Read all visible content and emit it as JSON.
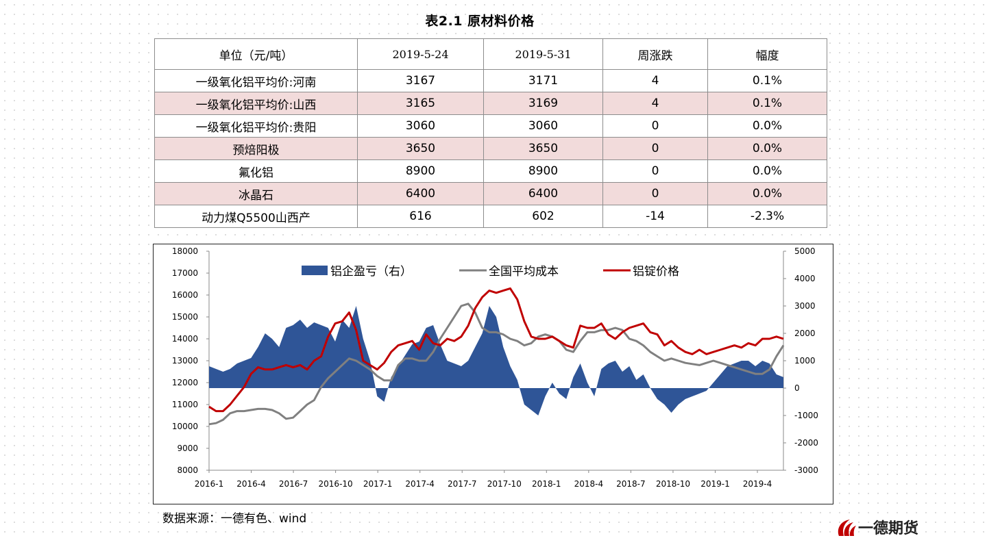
{
  "table": {
    "title": "表2.1 原材料价格",
    "headers": [
      "单位（元/吨）",
      "2019-5-24",
      "2019-5-31",
      "周涨跌",
      "幅度"
    ],
    "rows": [
      [
        "一级氧化铝平均价:河南",
        "3167",
        "3171",
        "4",
        "0.1%"
      ],
      [
        "一级氧化铝平均价:山西",
        "3165",
        "3169",
        "4",
        "0.1%"
      ],
      [
        "一级氧化铝平均价:贵阳",
        "3060",
        "3060",
        "0",
        "0.0%"
      ],
      [
        "预焙阳极",
        "3650",
        "3650",
        "0",
        "0.0%"
      ],
      [
        "氟化铝",
        "8900",
        "8900",
        "0",
        "0.0%"
      ],
      [
        "冰晶石",
        "6400",
        "6400",
        "0",
        "0.0%"
      ],
      [
        "动力煤Q5500山西产",
        "616",
        "602",
        "-14",
        "-2.3%"
      ]
    ]
  },
  "source": "数据来源：一德有色、wind",
  "logo_text": "一德期货",
  "colors": {
    "bar": "#2f5597",
    "cost": "#808080",
    "price": "#c00000",
    "row_shade": "#f2dbdb"
  },
  "chart_data": {
    "type": "line",
    "x_ticks": [
      "2016-1",
      "2016-4",
      "2016-7",
      "2016-10",
      "2017-1",
      "2017-4",
      "2017-7",
      "2017-10",
      "2018-1",
      "2018-4",
      "2018-7",
      "2018-10",
      "2019-1",
      "2019-4"
    ],
    "x_range": [
      0,
      41
    ],
    "y_left": {
      "min": 8000,
      "max": 18000,
      "step": 1000,
      "ticks": [
        "18000",
        "17000",
        "16000",
        "15000",
        "14000",
        "13000",
        "12000",
        "11000",
        "10000",
        "9000",
        "8000"
      ]
    },
    "y_right": {
      "min": -3000,
      "max": 5000,
      "step": 1000,
      "ticks": [
        "5000",
        "4000",
        "3000",
        "2000",
        "1000",
        "0",
        "-1000",
        "-2000",
        "-3000"
      ]
    },
    "legend_position": "top-center",
    "series": [
      {
        "name": "铝企盈亏（右）",
        "type": "area",
        "axis": "right",
        "x": [
          0,
          0.5,
          1,
          1.5,
          2,
          2.5,
          3,
          3.5,
          4,
          4.5,
          5,
          5.5,
          6,
          6.5,
          7,
          7.5,
          8,
          8.5,
          9,
          9.5,
          10,
          10.5,
          11,
          11.5,
          12,
          12.5,
          13,
          13.5,
          14,
          14.5,
          15,
          15.5,
          16,
          16.5,
          17,
          17.5,
          18,
          18.5,
          19,
          19.5,
          20,
          20.5,
          21,
          21.5,
          22,
          22.5,
          23,
          23.5,
          24,
          24.5,
          25,
          25.5,
          26,
          26.5,
          27,
          27.5,
          28,
          28.5,
          29,
          29.5,
          30,
          30.5,
          31,
          31.5,
          32,
          32.5,
          33,
          33.5,
          34,
          34.5,
          35,
          35.5,
          36,
          36.5,
          37,
          37.5,
          38,
          38.5,
          39,
          39.5,
          40,
          40.5,
          41
        ],
        "values": [
          800,
          700,
          600,
          700,
          900,
          1000,
          1100,
          1500,
          2000,
          1800,
          1500,
          2200,
          2300,
          2500,
          2200,
          2400,
          2300,
          2200,
          1700,
          2500,
          2200,
          3000,
          1800,
          1000,
          -300,
          -500,
          400,
          800,
          1200,
          1600,
          1700,
          2200,
          2300,
          1600,
          1000,
          900,
          800,
          1000,
          1500,
          2000,
          3000,
          2600,
          1500,
          800,
          300,
          -600,
          -800,
          -1000,
          -300,
          200,
          -200,
          -400,
          400,
          900,
          200,
          -300,
          700,
          900,
          1000,
          600,
          800,
          300,
          500,
          0,
          -400,
          -600,
          -900,
          -600,
          -400,
          -300,
          -200,
          -100,
          200,
          500,
          800,
          900,
          1000,
          1000,
          800,
          1000,
          900,
          500,
          400
        ]
      },
      {
        "name": "全国平均成本",
        "type": "line",
        "axis": "left",
        "x": [
          0,
          0.5,
          1,
          1.5,
          2,
          2.5,
          3,
          3.5,
          4,
          4.5,
          5,
          5.5,
          6,
          6.5,
          7,
          7.5,
          8,
          8.5,
          9,
          9.5,
          10,
          10.5,
          11,
          11.5,
          12,
          12.5,
          13,
          13.5,
          14,
          14.5,
          15,
          15.5,
          16,
          16.5,
          17,
          17.5,
          18,
          18.5,
          19,
          19.5,
          20,
          20.5,
          21,
          21.5,
          22,
          22.5,
          23,
          23.5,
          24,
          24.5,
          25,
          25.5,
          26,
          26.5,
          27,
          27.5,
          28,
          28.5,
          29,
          29.5,
          30,
          30.5,
          31,
          31.5,
          32,
          32.5,
          33,
          33.5,
          34,
          34.5,
          35,
          35.5,
          36,
          36.5,
          37,
          37.5,
          38,
          38.5,
          39,
          39.5,
          40,
          40.5,
          41
        ],
        "values": [
          10100,
          10150,
          10300,
          10600,
          10700,
          10700,
          10750,
          10800,
          10800,
          10750,
          10600,
          10350,
          10400,
          10700,
          11000,
          11200,
          11800,
          12200,
          12500,
          12800,
          13100,
          13000,
          12800,
          12600,
          12300,
          12100,
          12100,
          12800,
          13100,
          13100,
          13000,
          13000,
          13400,
          14000,
          14500,
          15000,
          15500,
          15600,
          15200,
          14500,
          14300,
          14300,
          14200,
          14000,
          13900,
          13700,
          13800,
          14100,
          14200,
          14100,
          13900,
          13500,
          13400,
          13900,
          14300,
          14300,
          14400,
          14400,
          14500,
          14400,
          14000,
          13900,
          13700,
          13400,
          13200,
          13000,
          13100,
          13000,
          12900,
          12850,
          12800,
          12900,
          13000,
          12900,
          12800,
          12700,
          12600,
          12500,
          12400,
          12400,
          12600,
          13200,
          13700
        ]
      },
      {
        "name": "铝锭价格",
        "type": "line",
        "axis": "left",
        "x": [
          0,
          0.5,
          1,
          1.5,
          2,
          2.5,
          3,
          3.5,
          4,
          4.5,
          5,
          5.5,
          6,
          6.5,
          7,
          7.5,
          8,
          8.5,
          9,
          9.5,
          10,
          10.5,
          11,
          11.5,
          12,
          12.5,
          13,
          13.5,
          14,
          14.5,
          15,
          15.5,
          16,
          16.5,
          17,
          17.5,
          18,
          18.5,
          19,
          19.5,
          20,
          20.5,
          21,
          21.5,
          22,
          22.5,
          23,
          23.5,
          24,
          24.5,
          25,
          25.5,
          26,
          26.5,
          27,
          27.5,
          28,
          28.5,
          29,
          29.5,
          30,
          30.5,
          31,
          31.5,
          32,
          32.5,
          33,
          33.5,
          34,
          34.5,
          35,
          35.5,
          36,
          36.5,
          37,
          37.5,
          38,
          38.5,
          39,
          39.5,
          40,
          40.5,
          41
        ],
        "values": [
          10900,
          10700,
          10700,
          11000,
          11400,
          11800,
          12400,
          12700,
          12600,
          12600,
          12700,
          12800,
          12700,
          12800,
          12600,
          13000,
          13200,
          14100,
          14700,
          14800,
          15200,
          14400,
          13000,
          12800,
          12600,
          12900,
          13400,
          13700,
          13800,
          13900,
          13500,
          14200,
          13800,
          13700,
          14000,
          13900,
          14100,
          14600,
          15400,
          15900,
          16200,
          16100,
          16200,
          16300,
          15800,
          14800,
          14100,
          14000,
          14000,
          14100,
          13900,
          13700,
          13600,
          14600,
          14500,
          14500,
          14700,
          14200,
          14000,
          14300,
          14500,
          14600,
          14700,
          14300,
          14200,
          13700,
          13900,
          13600,
          13400,
          13300,
          13500,
          13300,
          13400,
          13500,
          13600,
          13700,
          13600,
          13800,
          13700,
          14000,
          14000,
          14100,
          14000
        ]
      }
    ]
  }
}
